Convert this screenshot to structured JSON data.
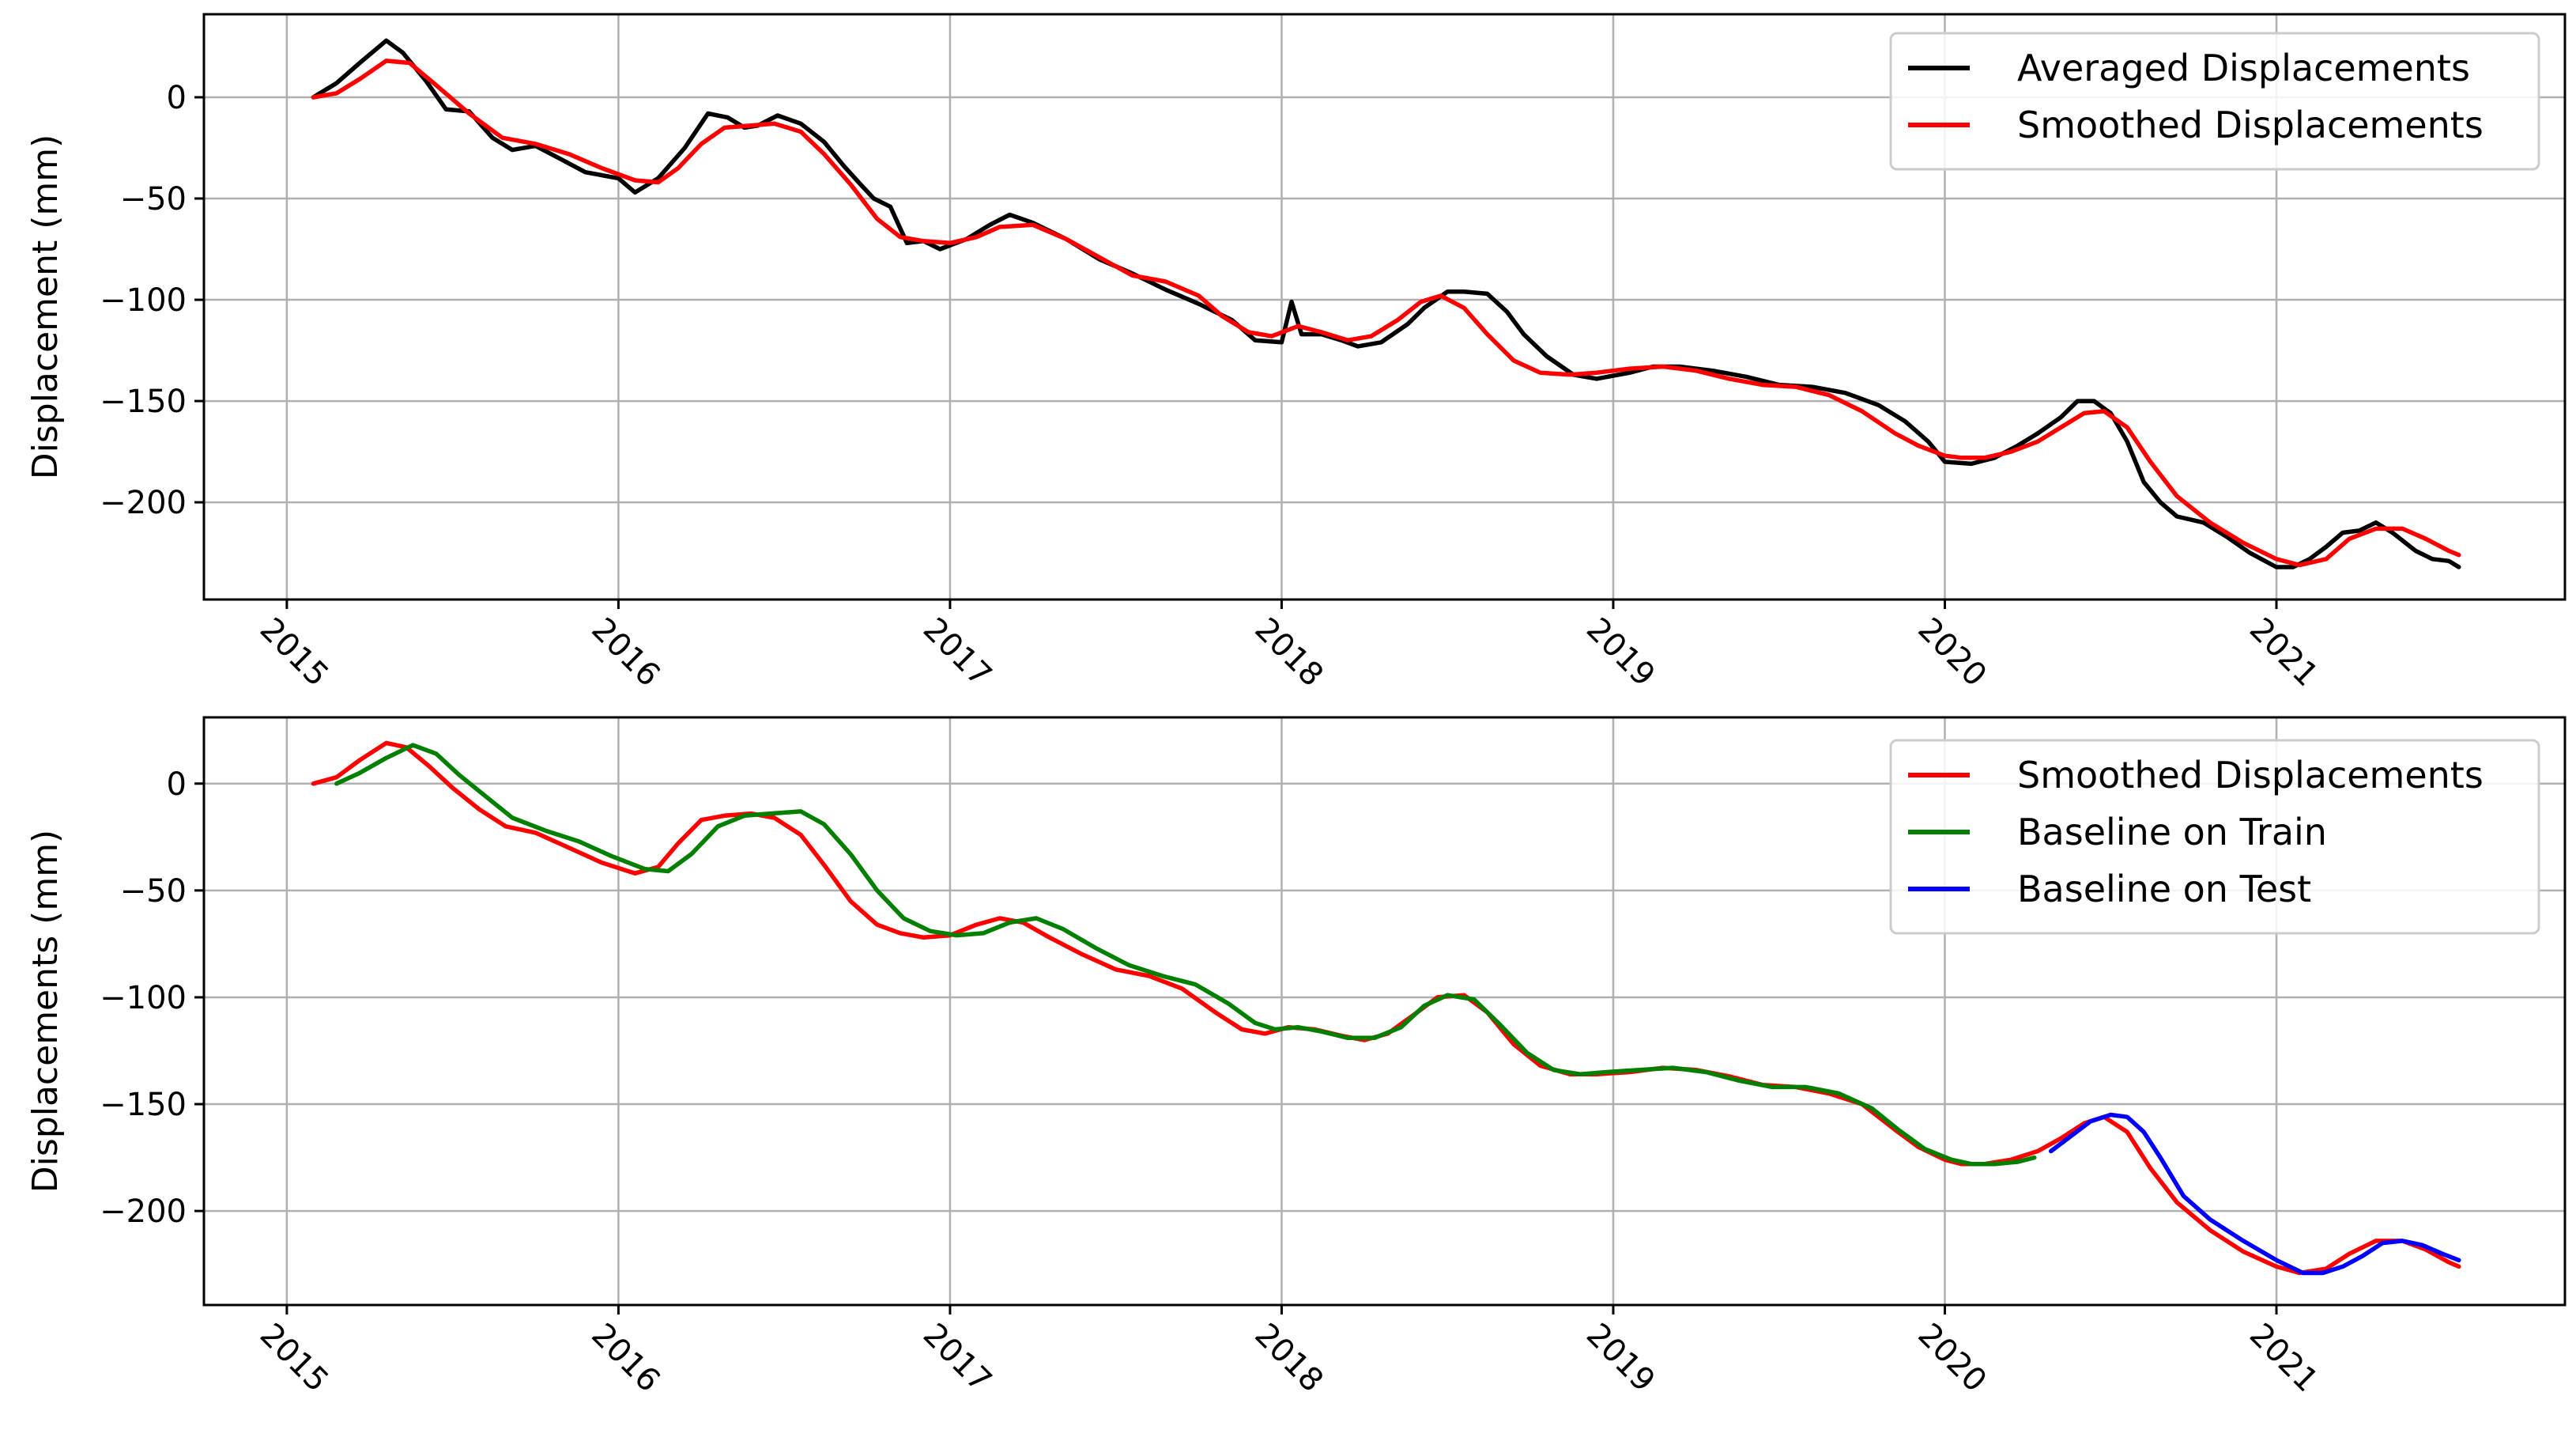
{
  "chart_data": [
    {
      "type": "line",
      "ylabel": "Displacement (mm)",
      "xlabel": "",
      "x_ticks": [
        "2015",
        "2016",
        "2017",
        "2018",
        "2019",
        "2020",
        "2021"
      ],
      "y_ticks": [
        0,
        -50,
        -100,
        -150,
        -200
      ],
      "y_tick_labels": [
        "0",
        "−50",
        "−100",
        "−150",
        "−200"
      ],
      "xlim": [
        2014.75,
        2021.87
      ],
      "ylim": [
        -248,
        41
      ],
      "grid": true,
      "legend": "top-right",
      "series": [
        {
          "name": "Averaged Displacements",
          "color": "#000000",
          "x": [
            2015.08,
            2015.15,
            2015.22,
            2015.3,
            2015.35,
            2015.42,
            2015.48,
            2015.55,
            2015.62,
            2015.68,
            2015.75,
            2015.82,
            2015.9,
            2016.0,
            2016.05,
            2016.12,
            2016.2,
            2016.27,
            2016.33,
            2016.38,
            2016.42,
            2016.48,
            2016.55,
            2016.62,
            2016.68,
            2016.73,
            2016.77,
            2016.82,
            2016.87,
            2016.92,
            2016.97,
            2017.05,
            2017.12,
            2017.18,
            2017.25,
            2017.35,
            2017.45,
            2017.55,
            2017.65,
            2017.75,
            2017.85,
            2017.92,
            2018.0,
            2018.03,
            2018.06,
            2018.12,
            2018.18,
            2018.23,
            2018.3,
            2018.38,
            2018.43,
            2018.5,
            2018.55,
            2018.62,
            2018.68,
            2018.73,
            2018.8,
            2018.88,
            2018.95,
            2019.05,
            2019.12,
            2019.2,
            2019.3,
            2019.4,
            2019.5,
            2019.6,
            2019.7,
            2019.8,
            2019.88,
            2019.95,
            2020.0,
            2020.08,
            2020.15,
            2020.22,
            2020.28,
            2020.35,
            2020.4,
            2020.45,
            2020.5,
            2020.55,
            2020.6,
            2020.65,
            2020.7,
            2020.78,
            2020.85,
            2020.92,
            2021.0,
            2021.05,
            2021.1,
            2021.15,
            2021.2,
            2021.25,
            2021.3,
            2021.35,
            2021.42,
            2021.47,
            2021.52,
            2021.55
          ],
          "values": [
            0,
            7,
            17,
            28,
            22,
            8,
            -6,
            -7,
            -20,
            -26,
            -24,
            -30,
            -37,
            -40,
            -47,
            -40,
            -25,
            -8,
            -10,
            -15,
            -14,
            -9,
            -13,
            -22,
            -34,
            -43,
            -50,
            -54,
            -72,
            -71,
            -75,
            -70,
            -63,
            -58,
            -62,
            -70,
            -80,
            -87,
            -95,
            -102,
            -110,
            -120,
            -121,
            -101,
            -117,
            -117,
            -120,
            -123,
            -121,
            -112,
            -104,
            -96,
            -96,
            -97,
            -106,
            -117,
            -128,
            -137,
            -139,
            -136,
            -133,
            -133,
            -135,
            -138,
            -142,
            -143,
            -146,
            -152,
            -160,
            -170,
            -180,
            -181,
            -178,
            -172,
            -166,
            -158,
            -150,
            -150,
            -156,
            -170,
            -190,
            -200,
            -207,
            -210,
            -217,
            -225,
            -232,
            -232,
            -228,
            -222,
            -215,
            -214,
            -210,
            -215,
            -224,
            -228,
            -229,
            -232
          ]
        },
        {
          "name": "Smoothed Displacements",
          "color": "#ff0000",
          "x": [
            2015.08,
            2015.15,
            2015.22,
            2015.3,
            2015.37,
            2015.45,
            2015.55,
            2015.65,
            2015.75,
            2015.85,
            2015.95,
            2016.05,
            2016.12,
            2016.18,
            2016.25,
            2016.32,
            2016.4,
            2016.47,
            2016.55,
            2016.62,
            2016.7,
            2016.78,
            2016.85,
            2016.92,
            2017.0,
            2017.08,
            2017.15,
            2017.25,
            2017.35,
            2017.45,
            2017.55,
            2017.65,
            2017.75,
            2017.82,
            2017.9,
            2017.97,
            2018.05,
            2018.12,
            2018.2,
            2018.27,
            2018.35,
            2018.42,
            2018.48,
            2018.55,
            2018.62,
            2018.7,
            2018.78,
            2018.87,
            2018.95,
            2019.05,
            2019.15,
            2019.25,
            2019.35,
            2019.45,
            2019.55,
            2019.65,
            2019.75,
            2019.85,
            2019.92,
            2020.0,
            2020.05,
            2020.12,
            2020.2,
            2020.28,
            2020.35,
            2020.42,
            2020.48,
            2020.55,
            2020.62,
            2020.7,
            2020.8,
            2020.9,
            2021.0,
            2021.07,
            2021.15,
            2021.22,
            2021.3,
            2021.38,
            2021.45,
            2021.52,
            2021.55
          ],
          "values": [
            0,
            2,
            9,
            18,
            17,
            6,
            -8,
            -20,
            -23,
            -28,
            -35,
            -41,
            -42,
            -35,
            -23,
            -15,
            -14,
            -13,
            -17,
            -28,
            -43,
            -60,
            -69,
            -71,
            -72,
            -69,
            -64,
            -63,
            -70,
            -79,
            -88,
            -91,
            -98,
            -108,
            -116,
            -118,
            -113,
            -116,
            -120,
            -118,
            -110,
            -101,
            -98,
            -104,
            -117,
            -130,
            -136,
            -137,
            -136,
            -134,
            -133,
            -135,
            -139,
            -142,
            -143,
            -147,
            -155,
            -166,
            -172,
            -177,
            -178,
            -178,
            -175,
            -170,
            -163,
            -156,
            -155,
            -163,
            -180,
            -197,
            -210,
            -220,
            -228,
            -231,
            -228,
            -218,
            -213,
            -213,
            -218,
            -224,
            -226
          ]
        }
      ]
    },
    {
      "type": "line",
      "ylabel": "Displacements (mm)",
      "xlabel": "",
      "x_ticks": [
        "2015",
        "2016",
        "2017",
        "2018",
        "2019",
        "2020",
        "2021"
      ],
      "y_ticks": [
        0,
        -50,
        -100,
        -150,
        -200
      ],
      "y_tick_labels": [
        "0",
        "−50",
        "−100",
        "−150",
        "−200"
      ],
      "xlim": [
        2014.75,
        2021.87
      ],
      "ylim": [
        -244,
        31
      ],
      "grid": true,
      "legend": "top-right",
      "series": [
        {
          "name": "Smoothed Displacements",
          "color": "#ff0000",
          "x": [
            2015.08,
            2015.15,
            2015.22,
            2015.3,
            2015.36,
            2015.43,
            2015.5,
            2015.58,
            2015.66,
            2015.75,
            2015.85,
            2015.95,
            2016.05,
            2016.12,
            2016.18,
            2016.25,
            2016.32,
            2016.4,
            2016.47,
            2016.55,
            2016.62,
            2016.7,
            2016.78,
            2016.85,
            2016.92,
            2017.0,
            2017.08,
            2017.15,
            2017.22,
            2017.3,
            2017.4,
            2017.5,
            2017.6,
            2017.7,
            2017.8,
            2017.88,
            2017.95,
            2018.02,
            2018.1,
            2018.18,
            2018.25,
            2018.32,
            2018.4,
            2018.47,
            2018.55,
            2018.62,
            2018.7,
            2018.78,
            2018.87,
            2018.95,
            2019.05,
            2019.15,
            2019.25,
            2019.35,
            2019.45,
            2019.55,
            2019.65,
            2019.75,
            2019.85,
            2019.92,
            2020.0,
            2020.05,
            2020.12,
            2020.2,
            2020.28,
            2020.35,
            2020.42,
            2020.48,
            2020.55,
            2020.62,
            2020.7,
            2020.8,
            2020.9,
            2021.0,
            2021.07,
            2021.15,
            2021.22,
            2021.3,
            2021.38,
            2021.45,
            2021.52,
            2021.55
          ],
          "values": [
            0,
            3,
            11,
            19,
            17,
            8,
            -2,
            -12,
            -20,
            -23,
            -30,
            -37,
            -42,
            -39,
            -28,
            -17,
            -15,
            -14,
            -16,
            -24,
            -38,
            -55,
            -66,
            -70,
            -72,
            -71,
            -66,
            -63,
            -65,
            -72,
            -80,
            -87,
            -90,
            -96,
            -107,
            -115,
            -117,
            -114,
            -115,
            -118,
            -120,
            -117,
            -108,
            -100,
            -99,
            -107,
            -122,
            -132,
            -136,
            -136,
            -135,
            -133,
            -134,
            -137,
            -141,
            -142,
            -145,
            -150,
            -162,
            -170,
            -176,
            -178,
            -178,
            -176,
            -172,
            -166,
            -159,
            -156,
            -163,
            -180,
            -196,
            -209,
            -219,
            -226,
            -229,
            -227,
            -220,
            -214,
            -214,
            -218,
            -224,
            -226
          ]
        },
        {
          "name": "Baseline on Train",
          "color": "#007f00",
          "x": [
            2015.15,
            2015.22,
            2015.3,
            2015.38,
            2015.45,
            2015.52,
            2015.6,
            2015.68,
            2015.78,
            2015.88,
            2015.98,
            2016.08,
            2016.15,
            2016.22,
            2016.3,
            2016.38,
            2016.46,
            2016.55,
            2016.62,
            2016.7,
            2016.78,
            2016.86,
            2016.94,
            2017.02,
            2017.1,
            2017.18,
            2017.26,
            2017.34,
            2017.44,
            2017.54,
            2017.64,
            2017.74,
            2017.84,
            2017.92,
            2017.98,
            2018.05,
            2018.12,
            2018.2,
            2018.28,
            2018.36,
            2018.43,
            2018.5,
            2018.58,
            2018.66,
            2018.74,
            2018.82,
            2018.9,
            2018.98,
            2019.08,
            2019.18,
            2019.28,
            2019.38,
            2019.48,
            2019.58,
            2019.68,
            2019.78,
            2019.86,
            2019.94,
            2020.02,
            2020.08,
            2020.15,
            2020.22,
            2020.27
          ],
          "values": [
            0,
            5,
            12,
            18,
            14,
            4,
            -6,
            -16,
            -22,
            -27,
            -34,
            -40,
            -41,
            -33,
            -20,
            -15,
            -14,
            -13,
            -19,
            -33,
            -50,
            -63,
            -69,
            -71,
            -70,
            -65,
            -63,
            -68,
            -77,
            -85,
            -90,
            -94,
            -103,
            -112,
            -115,
            -114,
            -116,
            -119,
            -119,
            -114,
            -104,
            -99,
            -101,
            -113,
            -126,
            -134,
            -136,
            -135,
            -134,
            -133,
            -135,
            -139,
            -142,
            -142,
            -145,
            -152,
            -162,
            -171,
            -176,
            -178,
            -178,
            -177,
            -175
          ]
        },
        {
          "name": "Baseline on Test",
          "color": "#0000ff",
          "x": [
            2020.32,
            2020.38,
            2020.44,
            2020.5,
            2020.55,
            2020.6,
            2020.65,
            2020.72,
            2020.8,
            2020.9,
            2021.0,
            2021.08,
            2021.14,
            2021.2,
            2021.26,
            2021.32,
            2021.38,
            2021.44,
            2021.5,
            2021.55
          ],
          "values": [
            -172,
            -165,
            -158,
            -155,
            -156,
            -163,
            -175,
            -193,
            -204,
            -214,
            -223,
            -229,
            -229,
            -226,
            -221,
            -215,
            -214,
            -216,
            -220,
            -223
          ]
        }
      ]
    }
  ]
}
